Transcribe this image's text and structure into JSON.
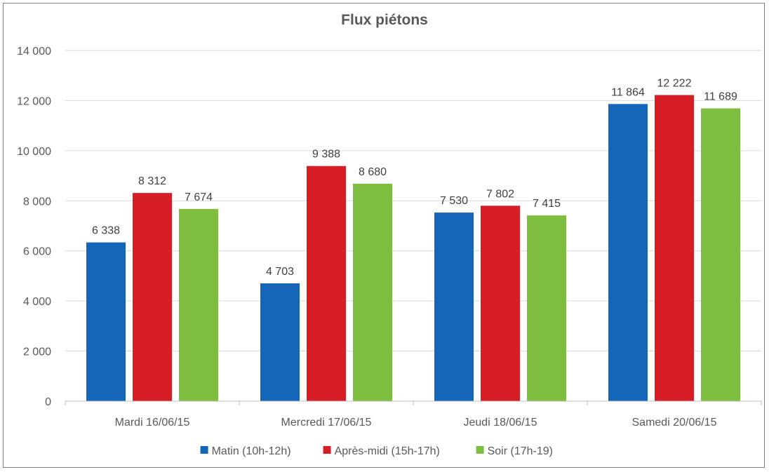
{
  "chart_data": {
    "type": "bar",
    "title": "Flux piétons",
    "xlabel": "",
    "ylabel": "",
    "categories": [
      "Mardi 16/06/15",
      "Mercredi 17/06/15",
      "Jeudi 18/06/15",
      "Samedi 20/06/15"
    ],
    "series": [
      {
        "name": "Matin (10h-12h)",
        "color": "#1565b8",
        "values": [
          6338,
          4703,
          7530,
          11864
        ],
        "labels": [
          "6 338",
          "4 703",
          "7 530",
          "11 864"
        ]
      },
      {
        "name": "Après-midi (15h-17h)",
        "color": "#d71e27",
        "values": [
          8312,
          9388,
          7802,
          12222
        ],
        "labels": [
          "8 312",
          "9 388",
          "7 802",
          "12 222"
        ]
      },
      {
        "name": "Soir (17h-19)",
        "color": "#7fbf3f",
        "values": [
          7674,
          8680,
          7415,
          11689
        ],
        "labels": [
          "7 674",
          "8 680",
          "7 415",
          "11 689"
        ]
      }
    ],
    "ylim": [
      0,
      14000
    ],
    "yticks": [
      0,
      2000,
      4000,
      6000,
      8000,
      10000,
      12000,
      14000
    ],
    "ytick_labels": [
      "0",
      "2 000",
      "4 000",
      "6 000",
      "8 000",
      "10 000",
      "12 000",
      "14 000"
    ],
    "grid": true,
    "legend_position": "bottom"
  }
}
